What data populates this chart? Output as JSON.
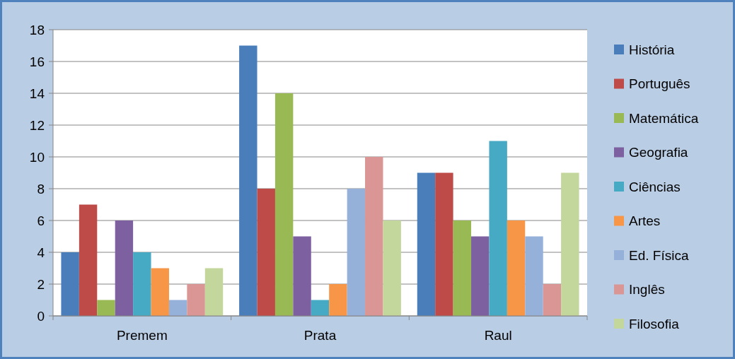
{
  "chart_data": {
    "type": "bar",
    "categories": [
      "Premem",
      "Prata",
      "Raul"
    ],
    "series": [
      {
        "name": "História",
        "color": "#4a7ebb",
        "values": [
          4,
          17,
          9
        ]
      },
      {
        "name": "Português",
        "color": "#be4b48",
        "values": [
          7,
          8,
          9
        ]
      },
      {
        "name": "Matemática",
        "color": "#98b954",
        "values": [
          1,
          14,
          6
        ]
      },
      {
        "name": "Geografia",
        "color": "#7d60a0",
        "values": [
          6,
          5,
          5
        ]
      },
      {
        "name": "Ciências",
        "color": "#46aac5",
        "values": [
          4,
          1,
          11
        ]
      },
      {
        "name": "Artes",
        "color": "#f79646",
        "values": [
          3,
          2,
          6
        ]
      },
      {
        "name": "Ed. Física",
        "color": "#95b0d9",
        "values": [
          1,
          8,
          5
        ]
      },
      {
        "name": "Inglês",
        "color": "#d99694",
        "values": [
          2,
          10,
          2
        ]
      },
      {
        "name": "Filosofia",
        "color": "#c3d69b",
        "values": [
          3,
          6,
          9
        ]
      }
    ],
    "ylim": [
      0,
      18
    ],
    "yticks": [
      0,
      2,
      4,
      6,
      8,
      10,
      12,
      14,
      16,
      18
    ],
    "grid": "y",
    "legend": "right"
  }
}
